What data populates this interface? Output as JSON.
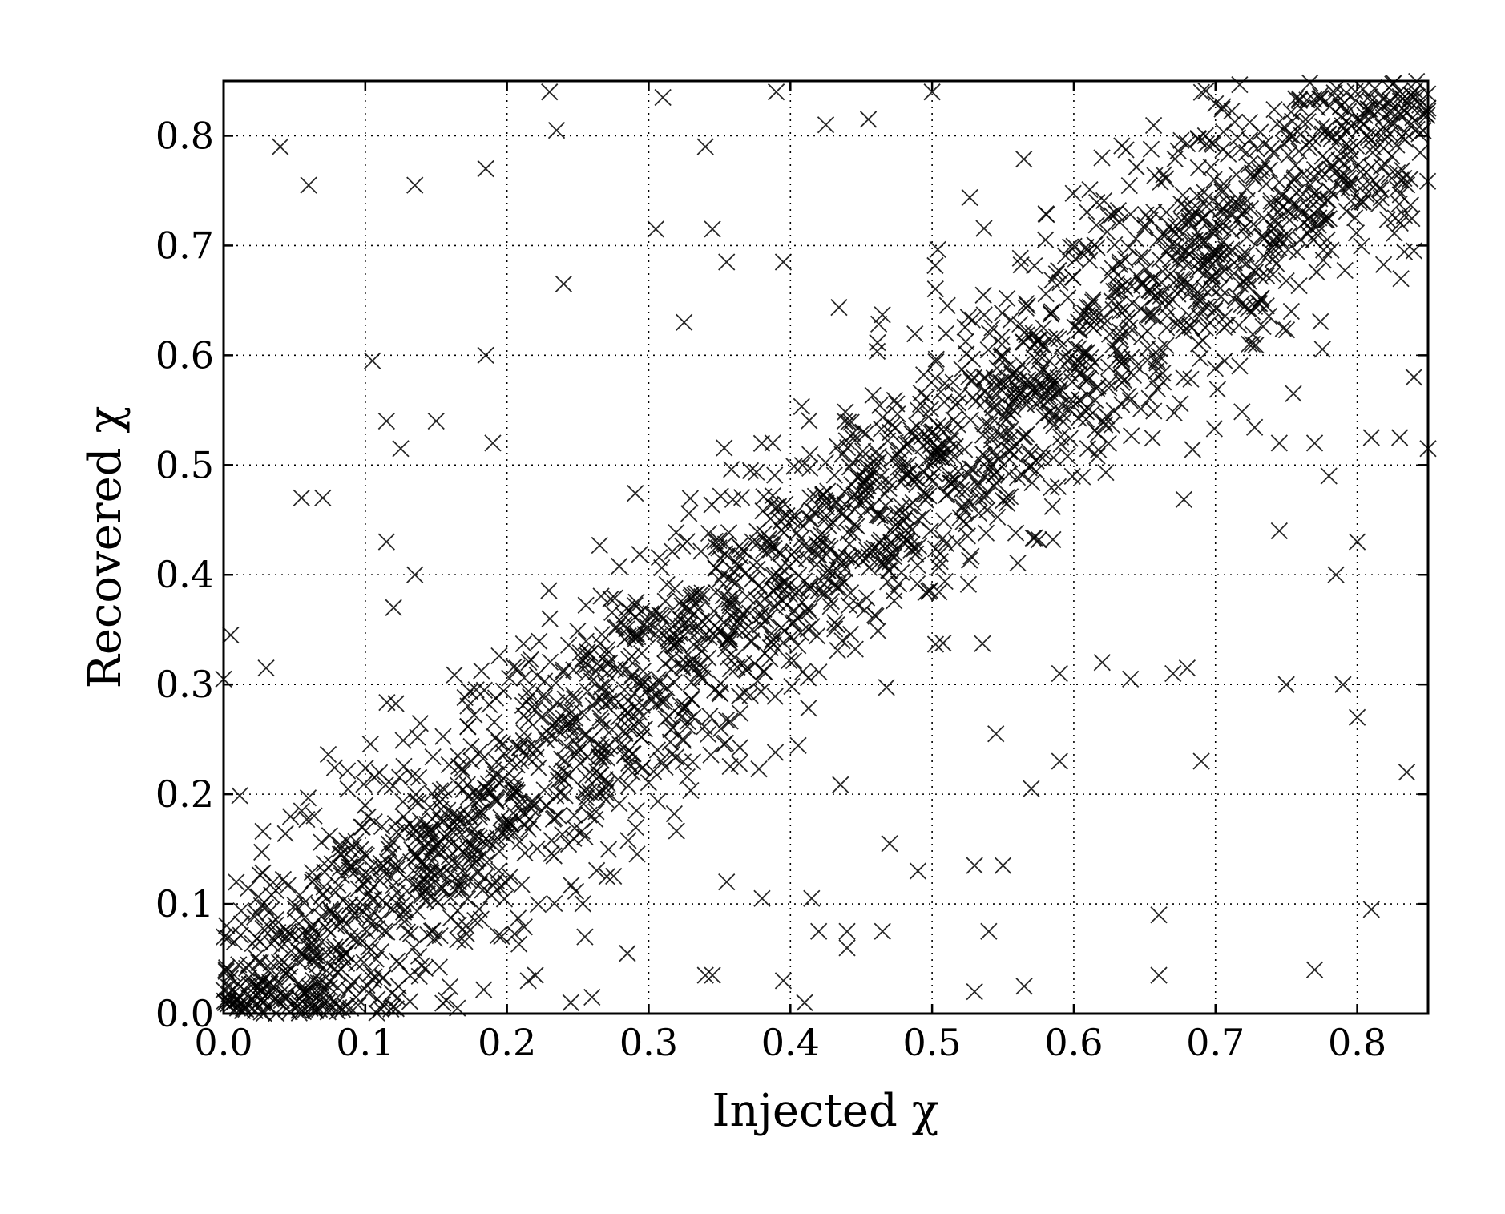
{
  "chart_data": {
    "type": "scatter",
    "title": "",
    "xlabel": "Injected χ",
    "ylabel": "Recovered χ",
    "xlim": [
      0.0,
      0.85
    ],
    "ylim": [
      0.0,
      0.85
    ],
    "xticks": [
      "0.0",
      "0.1",
      "0.2",
      "0.3",
      "0.4",
      "0.5",
      "0.6",
      "0.7",
      "0.8"
    ],
    "yticks": [
      "0.0",
      "0.1",
      "0.2",
      "0.3",
      "0.4",
      "0.5",
      "0.6",
      "0.7",
      "0.8"
    ],
    "grid": true,
    "marker": "x",
    "marker_color": "#000000",
    "trend": "Recovered χ ≈ Injected χ",
    "outliers": [
      [
        0.04,
        0.79
      ],
      [
        0.06,
        0.755
      ],
      [
        0.135,
        0.755
      ],
      [
        0.185,
        0.77
      ],
      [
        0.185,
        0.6
      ],
      [
        0.105,
        0.595
      ],
      [
        0.24,
        0.665
      ],
      [
        0.23,
        0.84
      ],
      [
        0.235,
        0.805
      ],
      [
        0.31,
        0.835
      ],
      [
        0.34,
        0.79
      ],
      [
        0.39,
        0.84
      ],
      [
        0.5,
        0.84
      ],
      [
        0.425,
        0.81
      ],
      [
        0.455,
        0.815
      ],
      [
        0.305,
        0.715
      ],
      [
        0.345,
        0.715
      ],
      [
        0.325,
        0.63
      ],
      [
        0.355,
        0.685
      ],
      [
        0.395,
        0.685
      ],
      [
        0.055,
        0.47
      ],
      [
        0.07,
        0.47
      ],
      [
        0.115,
        0.54
      ],
      [
        0.15,
        0.54
      ],
      [
        0.125,
        0.515
      ],
      [
        0.19,
        0.52
      ],
      [
        0.115,
        0.43
      ],
      [
        0.135,
        0.4
      ],
      [
        0.12,
        0.37
      ],
      [
        0.005,
        0.345
      ],
      [
        0.0,
        0.305
      ],
      [
        0.03,
        0.315
      ],
      [
        0.64,
        0.305
      ],
      [
        0.67,
        0.31
      ],
      [
        0.68,
        0.315
      ],
      [
        0.745,
        0.44
      ],
      [
        0.785,
        0.4
      ],
      [
        0.8,
        0.43
      ],
      [
        0.75,
        0.3
      ],
      [
        0.79,
        0.3
      ],
      [
        0.835,
        0.22
      ],
      [
        0.8,
        0.27
      ],
      [
        0.69,
        0.23
      ],
      [
        0.62,
        0.32
      ],
      [
        0.59,
        0.31
      ],
      [
        0.59,
        0.23
      ],
      [
        0.57,
        0.205
      ],
      [
        0.545,
        0.255
      ],
      [
        0.53,
        0.135
      ],
      [
        0.55,
        0.135
      ],
      [
        0.47,
        0.155
      ],
      [
        0.49,
        0.13
      ],
      [
        0.54,
        0.075
      ],
      [
        0.53,
        0.02
      ],
      [
        0.565,
        0.025
      ],
      [
        0.66,
        0.09
      ],
      [
        0.66,
        0.035
      ],
      [
        0.77,
        0.04
      ],
      [
        0.81,
        0.095
      ],
      [
        0.465,
        0.075
      ],
      [
        0.44,
        0.075
      ],
      [
        0.44,
        0.06
      ],
      [
        0.42,
        0.075
      ],
      [
        0.395,
        0.03
      ],
      [
        0.41,
        0.01
      ],
      [
        0.34,
        0.035
      ],
      [
        0.345,
        0.035
      ],
      [
        0.215,
        0.03
      ],
      [
        0.22,
        0.035
      ],
      [
        0.165,
        0.005
      ],
      [
        0.245,
        0.01
      ],
      [
        0.26,
        0.015
      ],
      [
        0.285,
        0.055
      ],
      [
        0.255,
        0.07
      ],
      [
        0.415,
        0.105
      ],
      [
        0.38,
        0.105
      ],
      [
        0.355,
        0.12
      ],
      [
        0.77,
        0.52
      ],
      [
        0.78,
        0.49
      ],
      [
        0.84,
        0.58
      ],
      [
        0.83,
        0.525
      ],
      [
        0.85,
        0.515
      ],
      [
        0.81,
        0.525
      ],
      [
        0.755,
        0.565
      ],
      [
        0.745,
        0.52
      ]
    ]
  }
}
